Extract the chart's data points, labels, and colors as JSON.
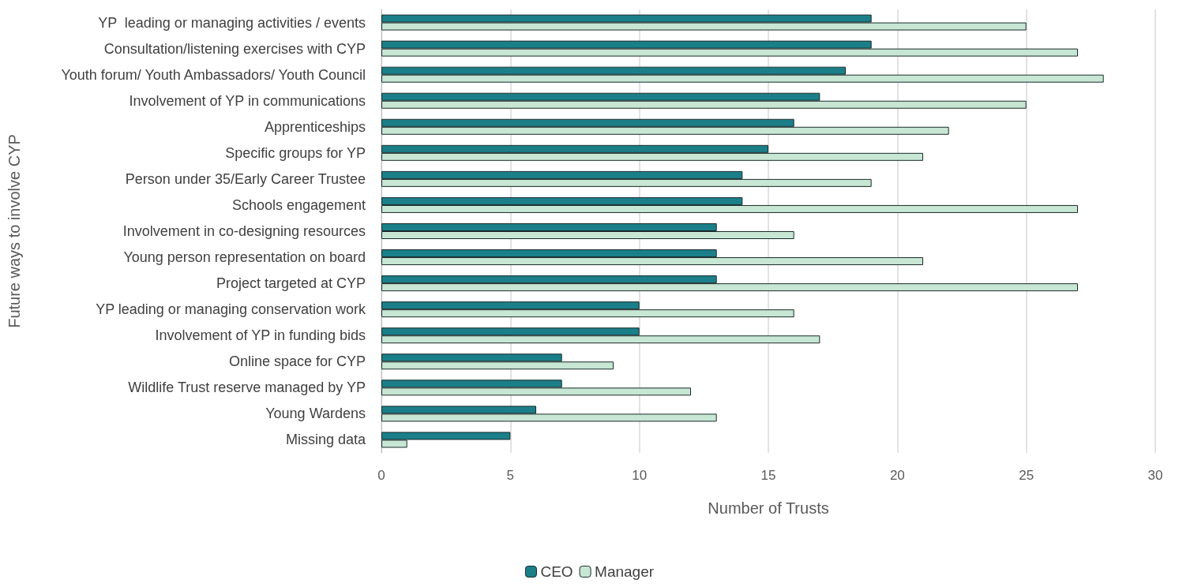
{
  "chart_data": {
    "type": "bar",
    "orientation": "horizontal",
    "xlabel": "Number of Trusts",
    "ylabel": "Future ways to involve CYP",
    "categories": [
      "YP  leading or managing activities / events",
      "Consultation/listening exercises with CYP",
      "Youth forum/ Youth Ambassadors/ Youth Council",
      "Involvement of YP in communications",
      "Apprenticeships",
      "Specific groups for YP",
      "Person under 35/Early Career Trustee",
      "Schools engagement",
      "Involvement in co-designing resources",
      "Young person representation on board",
      "Project targeted at CYP",
      "YP leading or managing conservation work",
      "Involvement of YP in funding bids",
      "Online space for CYP",
      "Wildlife Trust reserve managed by YP",
      "Young Wardens",
      "Missing data"
    ],
    "series": [
      {
        "name": "CEO",
        "color": "#1b7f89",
        "values": [
          19,
          19,
          18,
          17,
          16,
          15,
          14,
          14,
          13,
          13,
          13,
          10,
          10,
          7,
          7,
          6,
          5
        ]
      },
      {
        "name": "Manager",
        "color": "#c7e6d3",
        "values": [
          25,
          27,
          28,
          25,
          22,
          21,
          19,
          27,
          16,
          21,
          27,
          16,
          17,
          9,
          12,
          13,
          1
        ]
      }
    ],
    "xlim": [
      0,
      30
    ],
    "xticks": [
      0,
      5,
      10,
      15,
      20,
      25,
      30
    ],
    "grid": "x",
    "legend": "bottom"
  }
}
